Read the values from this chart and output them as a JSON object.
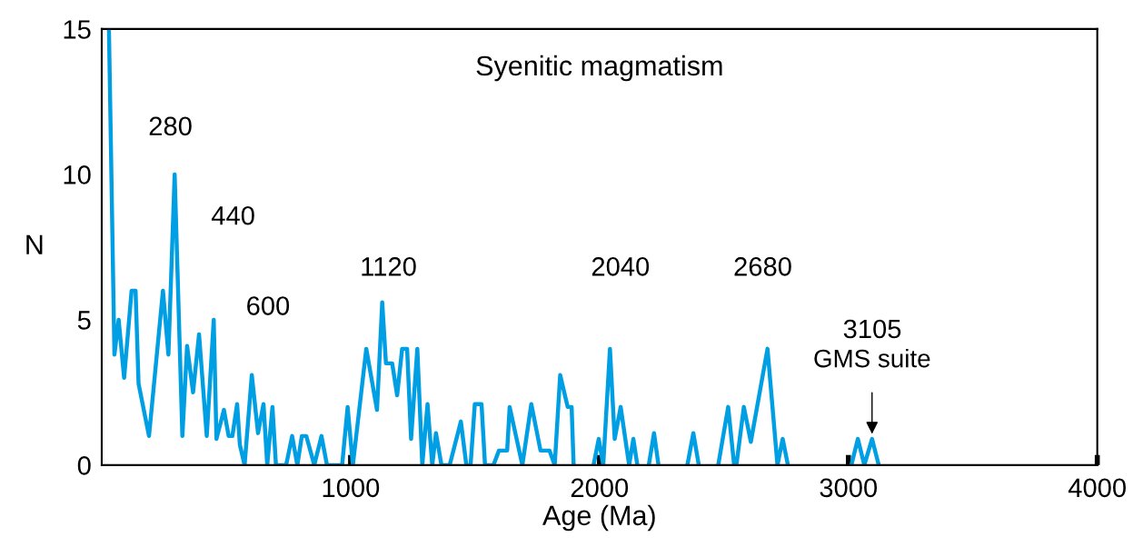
{
  "chart_data": {
    "type": "line",
    "title": "Syenitic magmatism",
    "xlabel": "Age (Ma)",
    "ylabel": "N",
    "xlim": [
      0,
      4000
    ],
    "ylim": [
      0,
      15
    ],
    "xticks": [
      1000,
      2000,
      3000,
      4000
    ],
    "yticks": [
      0,
      5,
      10,
      15
    ],
    "grid": false,
    "legend": false,
    "marker": "none",
    "line_style": "solid",
    "series": [
      {
        "color": "#009fe3",
        "x": [
          29,
          51,
          68,
          90,
          120,
          136,
          148,
          190,
          246,
          268,
          293,
          324,
          343,
          367,
          391,
          422,
          450,
          461,
          491,
          510,
          525,
          544,
          555,
          574,
          603,
          628,
          650,
          665,
          686,
          700,
          741,
          765,
          786,
          804,
          822,
          854,
          883,
          905,
          966,
          988,
          1009,
          1063,
          1106,
          1127,
          1142,
          1167,
          1187,
          1207,
          1227,
          1243,
          1268,
          1288,
          1309,
          1328,
          1343,
          1365,
          1398,
          1443,
          1465,
          1482,
          1499,
          1526,
          1540,
          1574,
          1596,
          1629,
          1639,
          1690,
          1726,
          1763,
          1799,
          1820,
          1842,
          1872,
          1888,
          1896,
          1936,
          1976,
          1997,
          2015,
          2042,
          2061,
          2085,
          2119,
          2136,
          2152,
          2175,
          2198,
          2219,
          2237,
          2295,
          2353,
          2377,
          2399,
          2440,
          2477,
          2517,
          2541,
          2550,
          2580,
          2608,
          2675,
          2715,
          2736,
          2757,
          2880,
          3012,
          3038,
          3064,
          3095,
          3122
        ],
        "values": [
          15,
          3.8,
          5,
          3,
          6,
          6,
          2.8,
          1,
          6,
          3.8,
          10,
          1,
          4.1,
          2.5,
          4.5,
          1,
          5,
          0.9,
          1.9,
          1,
          1,
          2.1,
          0.7,
          0,
          3.1,
          1.1,
          2.1,
          0,
          2,
          0,
          0,
          1,
          0,
          1,
          1,
          0,
          1,
          0,
          0,
          2,
          0,
          4,
          1.9,
          5.6,
          3.5,
          3.5,
          2.4,
          4,
          4,
          0.9,
          4,
          0,
          2.1,
          0,
          1.1,
          0,
          0,
          1.5,
          0,
          0,
          2.1,
          2.1,
          0,
          0,
          0.5,
          0.5,
          2,
          0,
          2.1,
          0.5,
          0.5,
          0,
          3.1,
          2,
          2,
          0,
          null,
          0,
          0.9,
          0,
          4,
          0.9,
          2,
          0,
          0.9,
          0,
          null,
          0,
          1.1,
          0,
          null,
          0,
          1.1,
          0,
          null,
          0,
          2,
          0,
          0,
          2,
          0.8,
          4,
          0,
          0.9,
          0,
          null,
          0,
          0.9,
          0,
          0.9,
          0
        ]
      }
    ],
    "annotations": [
      "280",
      "440",
      "600",
      "1120",
      "2040",
      "2680",
      "3105",
      {
        "text": "GMS suite",
        "x": 3095,
        "y": 0.9
      }
    ]
  }
}
